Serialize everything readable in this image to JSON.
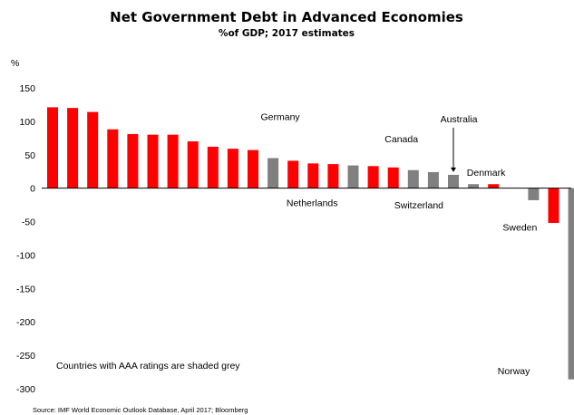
{
  "chart_data": {
    "type": "bar",
    "title": "Net Government Debt in Advanced Economies",
    "subtitle": "%of GDP; 2017 estimates",
    "ylabel": "%",
    "ylim": [
      -300,
      150
    ],
    "yticks": [
      150,
      100,
      50,
      0,
      -50,
      -100,
      -150,
      -200,
      -250,
      -300
    ],
    "grid": false,
    "legend": "none",
    "colors": {
      "non_aaa": "#ff0000",
      "aaa": "#808080"
    },
    "values": [
      121,
      120,
      114,
      88,
      81,
      80,
      80,
      70,
      62,
      59,
      57,
      45,
      41,
      37,
      36,
      34,
      33,
      31,
      27,
      24,
      20,
      6,
      6,
      0,
      -18,
      -52,
      -286
    ],
    "aaa": [
      false,
      false,
      false,
      false,
      false,
      false,
      false,
      false,
      false,
      false,
      false,
      true,
      false,
      false,
      false,
      true,
      false,
      false,
      true,
      true,
      true,
      true,
      false,
      false,
      true,
      false,
      true
    ],
    "annotations": [
      {
        "text": "Germany",
        "index": 11
      },
      {
        "text": "Netherlands",
        "index": 12
      },
      {
        "text": "Canada",
        "index": 17
      },
      {
        "text": "Switzerland",
        "index": 19
      },
      {
        "text": "Australia",
        "index": 20
      },
      {
        "text": "Denmark",
        "index": 21
      },
      {
        "text": "Sweden",
        "index": 24
      },
      {
        "text": "Norway",
        "index": 26
      }
    ],
    "note": "Countries with AAA ratings are shaded grey",
    "source": "Source: IMF World Economic Outlook Database, April 2017; Bloomberg"
  }
}
